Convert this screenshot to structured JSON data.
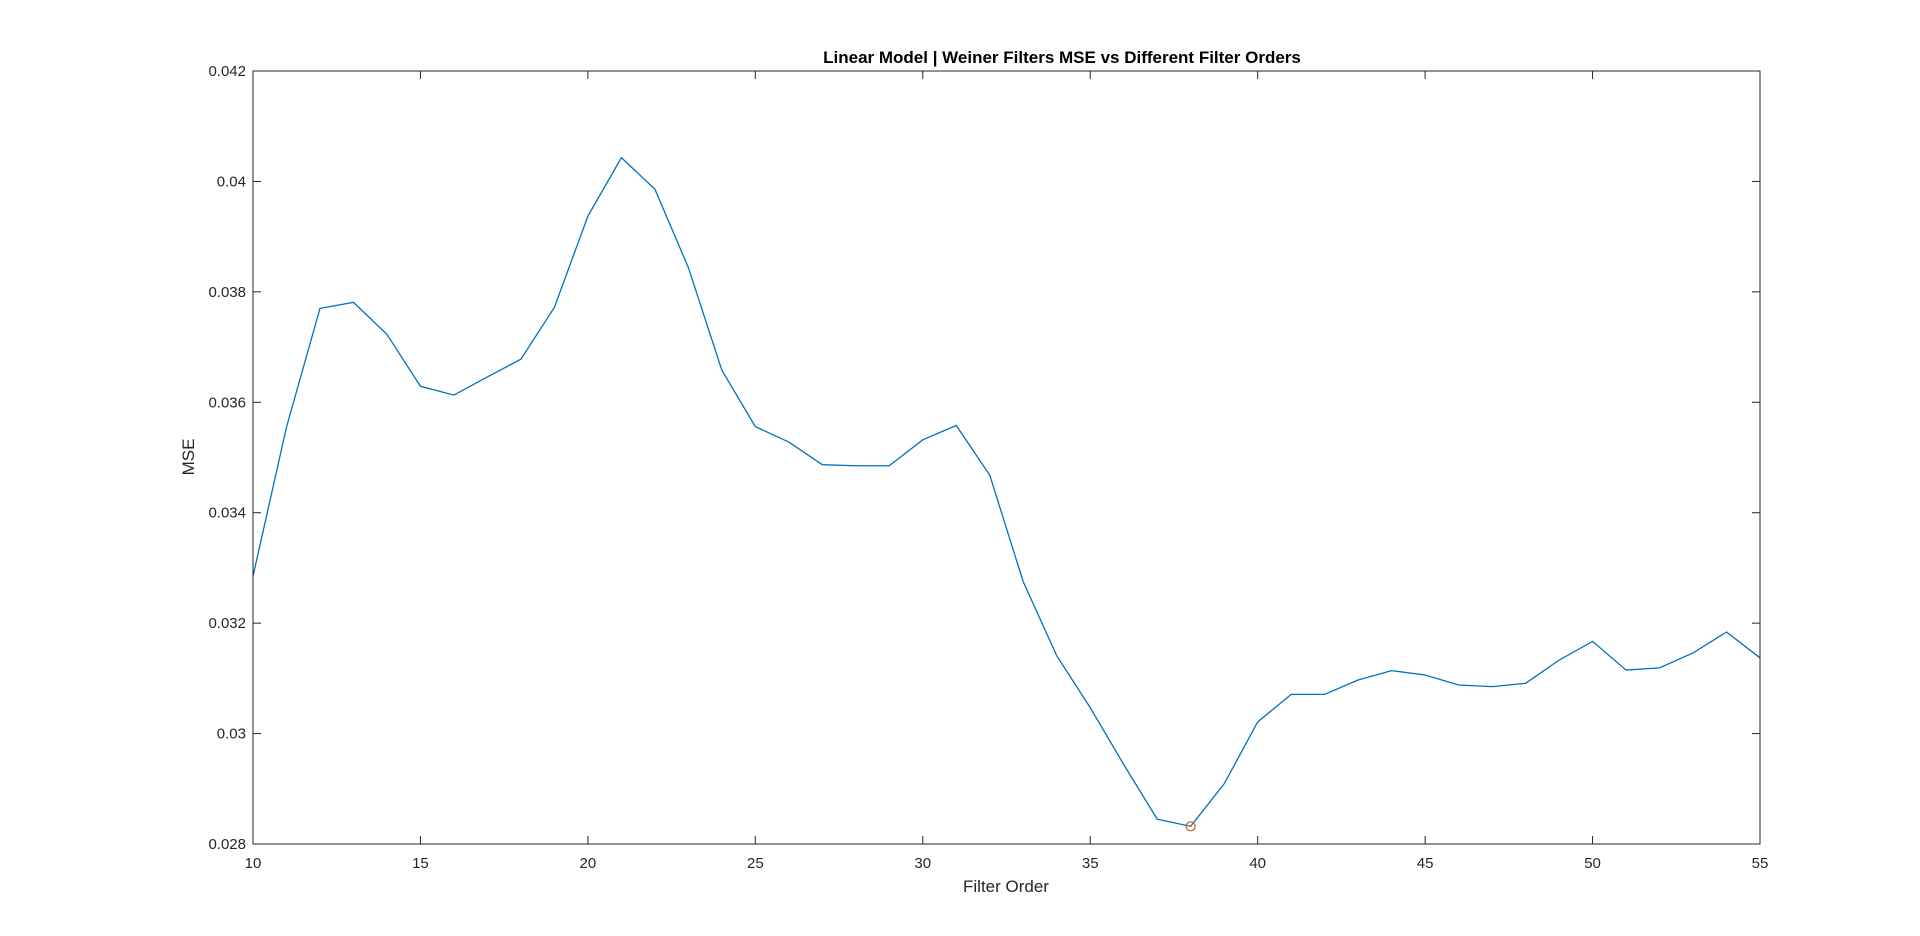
{
  "chart_data": {
    "type": "line",
    "title": "Linear Model | Weiner Filters MSE vs Different Filter Orders",
    "xlabel": "Filter Order",
    "ylabel": "MSE",
    "xlim": [
      10,
      55
    ],
    "ylim": [
      0.028,
      0.042
    ],
    "xticks": [
      10,
      15,
      20,
      25,
      30,
      35,
      40,
      45,
      50,
      55
    ],
    "xtick_labels": [
      "10",
      "15",
      "20",
      "25",
      "30",
      "35",
      "40",
      "45",
      "50",
      "55"
    ],
    "yticks": [
      0.028,
      0.03,
      0.032,
      0.034,
      0.036,
      0.038,
      0.04,
      0.042
    ],
    "ytick_labels": [
      "0.028",
      "0.03",
      "0.032",
      "0.034",
      "0.036",
      "0.038",
      "0.04",
      "0.042"
    ],
    "grid": false,
    "legend": "none",
    "series": [
      {
        "color": "#0072BD",
        "x": [
          10,
          11,
          12,
          13,
          14,
          15,
          16,
          17,
          18,
          19,
          20,
          21,
          22,
          23,
          24,
          25,
          26,
          27,
          28,
          29,
          30,
          31,
          32,
          33,
          34,
          35,
          36,
          37,
          38,
          39,
          40,
          41,
          42,
          43,
          44,
          45,
          46,
          47,
          48,
          49,
          50,
          51,
          52,
          53,
          54,
          55
        ],
        "y": [
          0.03285,
          0.03555,
          0.0377,
          0.03781,
          0.03723,
          0.03629,
          0.03613,
          0.03646,
          0.03678,
          0.03772,
          0.03937,
          0.04043,
          0.03986,
          0.03844,
          0.03658,
          0.03556,
          0.03528,
          0.03487,
          0.03485,
          0.03485,
          0.03532,
          0.03558,
          0.03468,
          0.03275,
          0.03141,
          0.03047,
          0.02944,
          0.02845,
          0.02832,
          0.02909,
          0.03021,
          0.03071,
          0.03071,
          0.03097,
          0.03114,
          0.03106,
          0.03088,
          0.03085,
          0.03091,
          0.03133,
          0.03167,
          0.03115,
          0.03119,
          0.03146,
          0.03184,
          0.03137
        ]
      }
    ],
    "marker": {
      "x": 38,
      "y": 0.02832,
      "color": "#D95319",
      "shape": "circle"
    }
  }
}
